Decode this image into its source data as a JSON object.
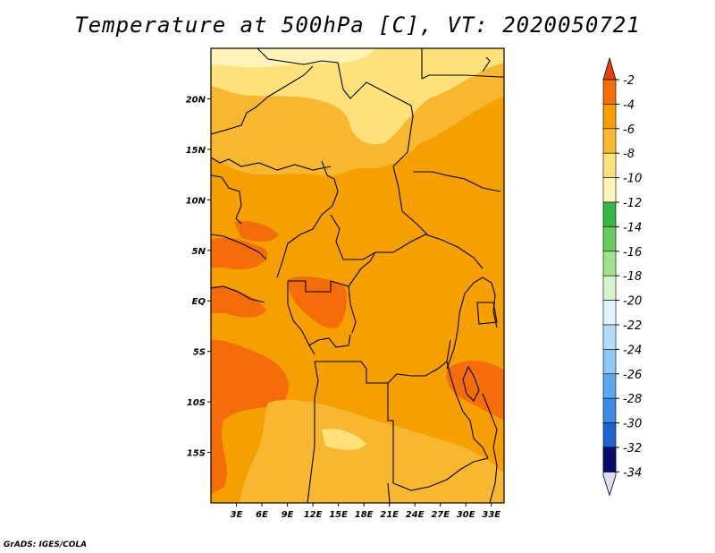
{
  "title": "Temperature at 500hPa [C], VT: 2020050721",
  "credit": "GrADS: IGES/COLA",
  "map": {
    "lon_range": [
      0,
      34.5
    ],
    "lat_range": [
      -20,
      25
    ],
    "lat_ticks": [
      {
        "value": 20,
        "label": "20N"
      },
      {
        "value": 15,
        "label": "15N"
      },
      {
        "value": 10,
        "label": "10N"
      },
      {
        "value": 5,
        "label": "5N"
      },
      {
        "value": 0,
        "label": "EQ"
      },
      {
        "value": -5,
        "label": "5S"
      },
      {
        "value": -10,
        "label": "10S"
      },
      {
        "value": -15,
        "label": "15S"
      }
    ],
    "lon_ticks": [
      {
        "value": 3,
        "label": "3E"
      },
      {
        "value": 6,
        "label": "6E"
      },
      {
        "value": 9,
        "label": "9E"
      },
      {
        "value": 12,
        "label": "12E"
      },
      {
        "value": 15,
        "label": "15E"
      },
      {
        "value": 18,
        "label": "18E"
      },
      {
        "value": 21,
        "label": "21E"
      },
      {
        "value": 24,
        "label": "24E"
      },
      {
        "value": 27,
        "label": "27E"
      },
      {
        "value": 30,
        "label": "30E"
      },
      {
        "value": 33,
        "label": "33E"
      }
    ]
  },
  "colorbar": {
    "labels": [
      "-2",
      "-4",
      "-6",
      "-8",
      "-10",
      "-12",
      "-14",
      "-16",
      "-18",
      "-20",
      "-22",
      "-24",
      "-26",
      "-28",
      "-30",
      "-32",
      "-34"
    ],
    "top_color": "#e8400c",
    "colors": [
      "#f46d0a",
      "#f5a000",
      "#f8b730",
      "#fde27b",
      "#fff3b8",
      "#35b844",
      "#6acd5b",
      "#a1e38b",
      "#d5f5c8",
      "#e0f4ff",
      "#b3dcfb",
      "#8bc8f8",
      "#5ba8f0",
      "#3a8ae6",
      "#1d64d0",
      "#0f45b5"
    ],
    "bottom_color": "#080d6c",
    "bottom_tip_color": "#dcdcf5"
  }
}
